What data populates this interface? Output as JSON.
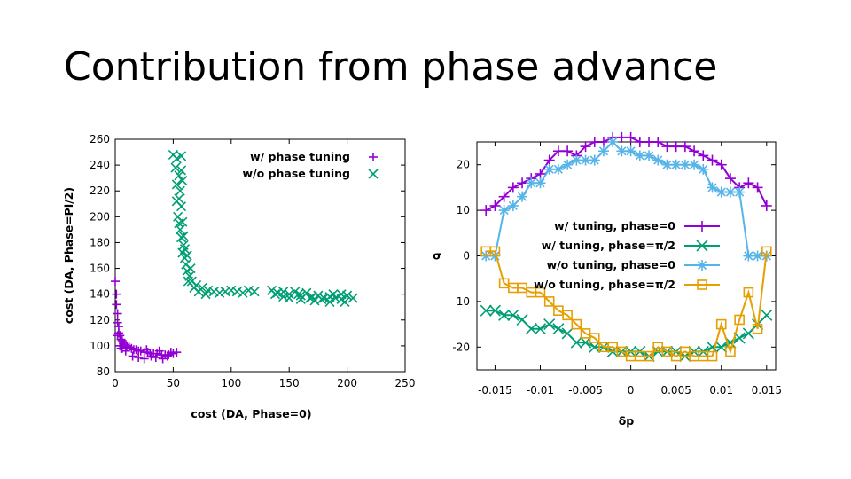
{
  "slide": {
    "title": "Contribution from phase advance"
  },
  "chart_data": [
    {
      "type": "scatter",
      "title": "",
      "xlabel": "cost (DA, Phase=0)",
      "ylabel": "cost (DA, Phase=Pi/2)",
      "xlim": [
        0,
        250
      ],
      "ylim": [
        80,
        260
      ],
      "xticks": [
        "0",
        "50",
        "100",
        "150",
        "200",
        "250"
      ],
      "yticks": [
        "80",
        "100",
        "120",
        "140",
        "160",
        "180",
        "200",
        "220",
        "240",
        "260"
      ],
      "legend_position": "top-right",
      "series": [
        {
          "name": "w/ phase tuning",
          "color": "#9400d3",
          "marker": "+",
          "points": [
            [
              0,
              150
            ],
            [
              1,
              140
            ],
            [
              1,
              132
            ],
            [
              2,
              125
            ],
            [
              2,
              118
            ],
            [
              3,
              115
            ],
            [
              3,
              110
            ],
            [
              4,
              108
            ],
            [
              5,
              105
            ],
            [
              6,
              104
            ],
            [
              7,
              102
            ],
            [
              8,
              101
            ],
            [
              10,
              100
            ],
            [
              12,
              99
            ],
            [
              14,
              98
            ],
            [
              16,
              97
            ],
            [
              18,
              97
            ],
            [
              20,
              96
            ],
            [
              22,
              96
            ],
            [
              25,
              95
            ],
            [
              28,
              95
            ],
            [
              30,
              94
            ],
            [
              33,
              94
            ],
            [
              36,
              94
            ],
            [
              40,
              93
            ],
            [
              43,
              93
            ],
            [
              46,
              93
            ],
            [
              50,
              94
            ],
            [
              53,
              95
            ],
            [
              15,
              92
            ],
            [
              20,
              91
            ],
            [
              25,
              90
            ],
            [
              35,
              91
            ],
            [
              45,
              92
            ],
            [
              5,
              98
            ],
            [
              9,
              96
            ],
            [
              27,
              97
            ],
            [
              38,
              96
            ],
            [
              48,
              95
            ],
            [
              2,
              108
            ],
            [
              4,
              100
            ],
            [
              6,
              98
            ],
            [
              31,
              92
            ],
            [
              41,
              90
            ]
          ]
        },
        {
          "name": "w/o phase tuning",
          "color": "#009e73",
          "marker": "×",
          "points": [
            [
              50,
              248
            ],
            [
              53,
              245
            ],
            [
              57,
              247
            ],
            [
              52,
              238
            ],
            [
              55,
              232
            ],
            [
              58,
              228
            ],
            [
              53,
              225
            ],
            [
              56,
              220
            ],
            [
              55,
              214
            ],
            [
              57,
              208
            ],
            [
              54,
              200
            ],
            [
              58,
              196
            ],
            [
              56,
              190
            ],
            [
              57,
              184
            ],
            [
              59,
              178
            ],
            [
              58,
              172
            ],
            [
              60,
              168
            ],
            [
              61,
              163
            ],
            [
              62,
              158
            ],
            [
              64,
              154
            ],
            [
              66,
              150
            ],
            [
              70,
              147
            ],
            [
              75,
              145
            ],
            [
              80,
              143
            ],
            [
              85,
              142
            ],
            [
              90,
              141
            ],
            [
              95,
              142
            ],
            [
              100,
              143
            ],
            [
              105,
              142
            ],
            [
              110,
              141
            ],
            [
              115,
              143
            ],
            [
              120,
              142
            ],
            [
              63,
              150
            ],
            [
              68,
              145
            ],
            [
              72,
              142
            ],
            [
              78,
              140
            ],
            [
              65,
              160
            ],
            [
              60,
              175
            ],
            [
              62,
              170
            ],
            [
              59,
              185
            ],
            [
              55,
              195
            ],
            [
              53,
              212
            ],
            [
              57,
              236
            ],
            [
              140,
              141
            ],
            [
              145,
              142
            ],
            [
              150,
              140
            ],
            [
              155,
              142
            ],
            [
              160,
              139
            ],
            [
              165,
              141
            ],
            [
              170,
              138
            ],
            [
              175,
              139
            ],
            [
              180,
              137
            ],
            [
              185,
              138
            ],
            [
              190,
              137
            ],
            [
              195,
              136
            ],
            [
              200,
              139
            ],
            [
              205,
              137
            ],
            [
              150,
              137
            ],
            [
              160,
              136
            ],
            [
              172,
              135
            ],
            [
              185,
              134
            ],
            [
              198,
              134
            ],
            [
              145,
              138
            ],
            [
              158,
              140
            ],
            [
              168,
              137
            ],
            [
              178,
              136
            ],
            [
              188,
              140
            ],
            [
              195,
              140
            ],
            [
              135,
              143
            ],
            [
              138,
              140
            ]
          ]
        }
      ]
    },
    {
      "type": "line",
      "title": "",
      "xlabel": "δp",
      "ylabel": "σ",
      "xlim": [
        -0.017,
        0.016
      ],
      "ylim": [
        -25,
        25
      ],
      "xticks": [
        "-0.015",
        "-0.01",
        "-0.005",
        "0",
        "0.005",
        "0.01",
        "0.015"
      ],
      "yticks": [
        "-20",
        "-10",
        "0",
        "10",
        "20"
      ],
      "legend_position": "center-right",
      "series": [
        {
          "name": "w/ tuning, phase=0",
          "color": "#9400d3",
          "marker": "+",
          "x": [
            -0.016,
            -0.015,
            -0.014,
            -0.013,
            -0.012,
            -0.011,
            -0.01,
            -0.009,
            -0.008,
            -0.007,
            -0.006,
            -0.005,
            -0.004,
            -0.003,
            -0.002,
            -0.001,
            0,
            0.001,
            0.002,
            0.003,
            0.004,
            0.005,
            0.006,
            0.007,
            0.008,
            0.009,
            0.01,
            0.011,
            0.012,
            0.013,
            0.014,
            0.015
          ],
          "values": [
            10,
            11,
            13,
            15,
            16,
            17,
            18,
            21,
            23,
            23,
            22,
            24,
            25,
            25,
            26,
            26,
            26,
            25,
            25,
            25,
            24,
            24,
            24,
            23,
            22,
            21,
            20,
            17,
            15,
            16,
            15,
            11
          ]
        },
        {
          "name": "w/ tuning, phase=π/2",
          "color": "#009e73",
          "marker": "×",
          "x": [
            -0.016,
            -0.015,
            -0.014,
            -0.013,
            -0.012,
            -0.011,
            -0.01,
            -0.009,
            -0.008,
            -0.007,
            -0.006,
            -0.005,
            -0.004,
            -0.003,
            -0.002,
            -0.001,
            0,
            0.001,
            0.002,
            0.003,
            0.004,
            0.005,
            0.006,
            0.007,
            0.008,
            0.009,
            0.01,
            0.011,
            0.012,
            0.013,
            0.014,
            0.015
          ],
          "values": [
            -12,
            -12,
            -13,
            -13,
            -14,
            -16,
            -16,
            -15,
            -16,
            -17,
            -19,
            -19,
            -20,
            -20,
            -21,
            -21,
            -21,
            -21,
            -22,
            -21,
            -21,
            -21,
            -22,
            -21,
            -21,
            -20,
            -20,
            -19,
            -18,
            -17,
            -15,
            -13
          ]
        },
        {
          "name": "w/o tuning, phase=0",
          "color": "#56b4e9",
          "marker": "*",
          "x": [
            -0.016,
            -0.015,
            -0.014,
            -0.013,
            -0.012,
            -0.011,
            -0.01,
            -0.009,
            -0.008,
            -0.007,
            -0.006,
            -0.005,
            -0.004,
            -0.003,
            -0.002,
            -0.001,
            0,
            0.001,
            0.002,
            0.003,
            0.004,
            0.005,
            0.006,
            0.007,
            0.008,
            0.009,
            0.01,
            0.011,
            0.012,
            0.013,
            0.014,
            0.015
          ],
          "values": [
            0,
            0,
            10,
            11,
            13,
            16,
            16,
            19,
            19,
            20,
            21,
            21,
            21,
            23,
            25,
            23,
            23,
            22,
            22,
            21,
            20,
            20,
            20,
            20,
            19,
            15,
            14,
            14,
            14,
            0,
            0,
            0
          ]
        },
        {
          "name": "w/o tuning, phase=π/2",
          "color": "#e69f00",
          "marker": "□",
          "x": [
            -0.016,
            -0.015,
            -0.014,
            -0.013,
            -0.012,
            -0.011,
            -0.01,
            -0.009,
            -0.008,
            -0.007,
            -0.006,
            -0.005,
            -0.004,
            -0.003,
            -0.002,
            -0.001,
            0,
            0.001,
            0.002,
            0.003,
            0.004,
            0.005,
            0.006,
            0.007,
            0.008,
            0.009,
            0.01,
            0.011,
            0.012,
            0.013,
            0.014,
            0.015
          ],
          "values": [
            1,
            1,
            -6,
            -7,
            -7,
            -8,
            -8,
            -10,
            -12,
            -13,
            -15,
            -17,
            -18,
            -20,
            -20,
            -21,
            -22,
            -22,
            -22,
            -20,
            -21,
            -22,
            -21,
            -22,
            -22,
            -22,
            -15,
            -21,
            -14,
            -8,
            -16,
            1
          ]
        }
      ]
    }
  ]
}
